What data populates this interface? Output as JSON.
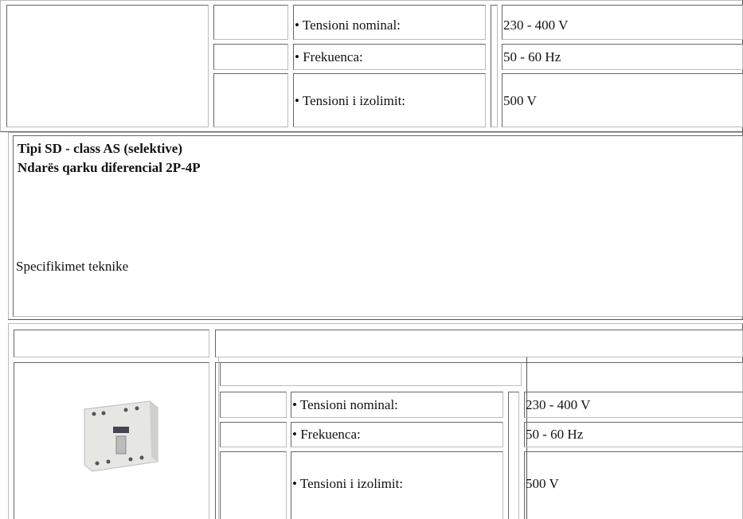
{
  "top_table": {
    "rows": [
      {
        "label": "• Tensioni nominal:",
        "value": "230 - 400 V"
      },
      {
        "label": "• Frekuenca:",
        "value": "50 - 60 Hz"
      },
      {
        "label": "• Tensioni i izolimit:",
        "value": "500 V"
      }
    ]
  },
  "section": {
    "title_lines": [
      "Tipi SD - class AS (selektive)",
      "Ndarës qarku diferencial 2P-4P"
    ],
    "subheading": "Specifikimet teknike"
  },
  "bottom_table": {
    "rows": [
      {
        "label": "• Tensioni nominal:",
        "value": "230 - 400 V"
      },
      {
        "label": "• Frekuenca:",
        "value": "50 - 60 Hz"
      },
      {
        "label": "• Tensioni i izolimit:",
        "value": "500 V"
      }
    ]
  }
}
